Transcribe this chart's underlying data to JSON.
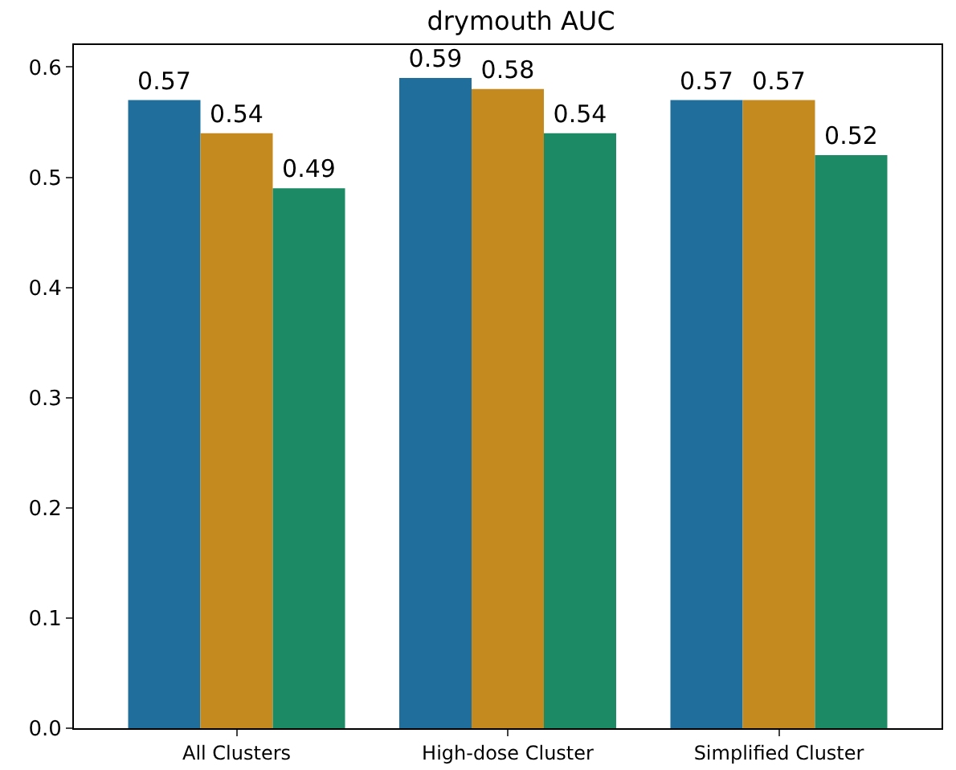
{
  "chart_data": {
    "type": "bar",
    "title": "drymouth AUC",
    "categories": [
      "All Clusters",
      "High-dose Cluster",
      "Simplified Cluster"
    ],
    "series": [
      {
        "color": "#1f6e9c",
        "values": [
          0.57,
          0.59,
          0.57
        ]
      },
      {
        "color": "#c58a1f",
        "values": [
          0.54,
          0.58,
          0.57
        ]
      },
      {
        "color": "#1d8a66",
        "values": [
          0.49,
          0.54,
          0.52
        ]
      }
    ],
    "ylim": [
      0,
      0.62
    ],
    "yticks": [
      {
        "value": 0,
        "label": "0.0"
      },
      0.1,
      0.2,
      0.3,
      0.4,
      0.5,
      0.6
    ],
    "data_labels": true,
    "grid": false
  }
}
